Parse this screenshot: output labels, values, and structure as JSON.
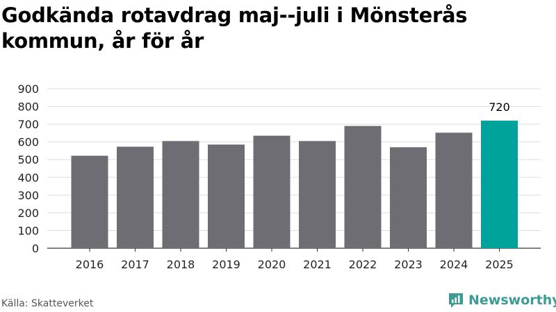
{
  "title": "Godkända rotavdrag maj--juli i Mönsterås kommun, år för år",
  "source": "Källa: Skatteverket",
  "brand": {
    "name": "Newsworthy",
    "icon": "newsworthy-logo-icon",
    "color": "#3a9c95"
  },
  "colors": {
    "bar": "#6d6d73",
    "highlight": "#00a39b",
    "grid": "#dddddd",
    "axis": "#333333"
  },
  "chart_data": {
    "type": "bar",
    "title": "Godkända rotavdrag maj--juli i Mönsterås kommun, år för år",
    "xlabel": "",
    "ylabel": "",
    "categories": [
      "2016",
      "2017",
      "2018",
      "2019",
      "2020",
      "2021",
      "2022",
      "2023",
      "2024",
      "2025"
    ],
    "values": [
      522,
      573,
      605,
      585,
      635,
      605,
      690,
      570,
      652,
      720
    ],
    "highlight_index": 9,
    "data_labels": [
      {
        "index": 9,
        "text": "720"
      }
    ],
    "ylim": [
      0,
      900
    ],
    "yticks": [
      0,
      100,
      200,
      300,
      400,
      500,
      600,
      700,
      800,
      900
    ],
    "grid": true,
    "legend": "none"
  }
}
